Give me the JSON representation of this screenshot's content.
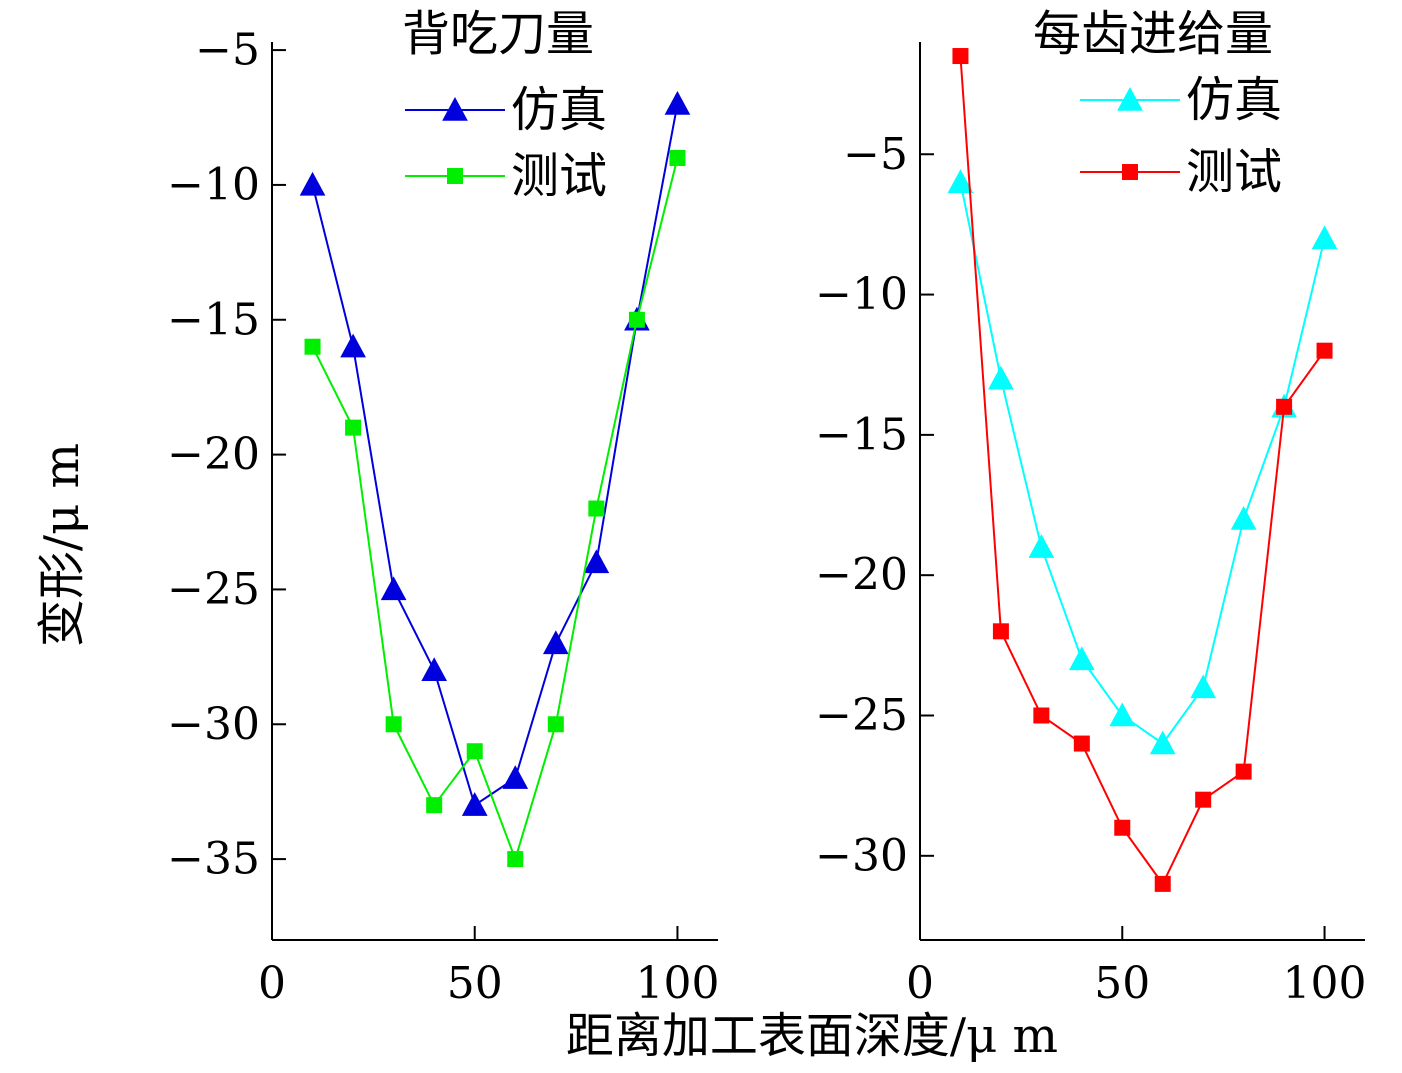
{
  "ylabel": "变形/μ m",
  "xlabel": "距离加工表面深度/μ m",
  "chart_data": [
    {
      "type": "line",
      "title": "背吃刀量",
      "xlim": [
        0,
        110
      ],
      "ylim": [
        -38,
        -4.7
      ],
      "x_ticks": [
        0,
        50,
        100
      ],
      "x_tick_labels": [
        "0",
        "50",
        "100"
      ],
      "y_ticks": [
        -5,
        -10,
        -15,
        -20,
        -25,
        -30,
        -35
      ],
      "y_tick_labels": [
        "−5",
        "−10",
        "−15",
        "−20",
        "−25",
        "−30",
        "−35"
      ],
      "x": [
        10,
        20,
        30,
        40,
        50,
        60,
        70,
        80,
        90,
        100
      ],
      "series": [
        {
          "name": "仿真",
          "marker": "triangle",
          "color": "#0000dd",
          "values": [
            -10,
            -16,
            -25,
            -28,
            -33,
            -32,
            -27,
            -24,
            -15,
            -7
          ]
        },
        {
          "name": "测试",
          "marker": "square",
          "color": "#00ee00",
          "values": [
            -16,
            -19,
            -30,
            -33,
            -31,
            -35,
            -30,
            -22,
            -15,
            -9
          ]
        }
      ],
      "legend": "top-right"
    },
    {
      "type": "line",
      "title": "每齿进给量",
      "xlim": [
        0,
        110
      ],
      "ylim": [
        -33,
        -1
      ],
      "x_ticks": [
        0,
        50,
        100
      ],
      "x_tick_labels": [
        "0",
        "50",
        "100"
      ],
      "y_ticks": [
        -5,
        -10,
        -15,
        -20,
        -25,
        -30
      ],
      "y_tick_labels": [
        "−5",
        "−10",
        "−15",
        "−20",
        "−25",
        "−30"
      ],
      "x": [
        10,
        20,
        30,
        40,
        50,
        60,
        70,
        80,
        90,
        100
      ],
      "series": [
        {
          "name": "仿真",
          "marker": "triangle",
          "color": "#00ffff",
          "values": [
            -6,
            -13,
            -19,
            -23,
            -25,
            -26,
            -24,
            -18,
            -14,
            -8
          ]
        },
        {
          "name": "测试",
          "marker": "square",
          "color": "#ff0000",
          "values": [
            -1.5,
            -22,
            -25,
            -26,
            -29,
            -31,
            -28,
            -27,
            -14,
            -12
          ]
        }
      ],
      "legend": "top-right"
    }
  ]
}
